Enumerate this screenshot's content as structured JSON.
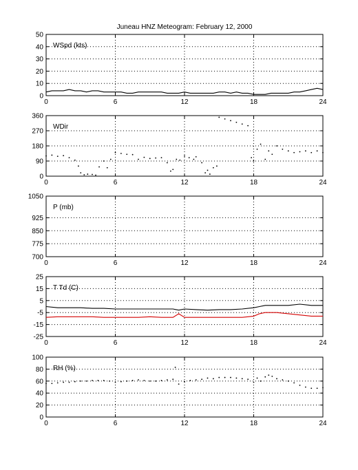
{
  "title": "Juneau HNZ Meteogram:  February 12, 2000",
  "chart_data": [
    {
      "type": "line",
      "label": "WSpd (kts)",
      "ylim": [
        0,
        50
      ],
      "yticks": [
        0,
        10,
        20,
        30,
        40,
        50
      ],
      "xlim": [
        0,
        24
      ],
      "xticks": [
        0,
        6,
        12,
        18,
        24
      ],
      "grid": true,
      "series": [
        {
          "color": "#000000",
          "x": [
            0,
            0.5,
            1,
            1.5,
            2,
            2.5,
            3,
            3.5,
            4,
            4.5,
            5,
            5.5,
            6,
            6.5,
            7,
            7.5,
            8,
            8.5,
            9,
            9.5,
            10,
            10.5,
            11,
            11.5,
            12,
            12.5,
            13,
            13.5,
            14,
            14.5,
            15,
            15.5,
            16,
            16.5,
            17,
            17.5,
            18,
            18.5,
            19,
            19.5,
            20,
            20.5,
            21,
            21.5,
            22,
            22.5,
            23,
            23.5,
            24
          ],
          "y": [
            3,
            4,
            4,
            4,
            5,
            4,
            4,
            3,
            4,
            4,
            3,
            3,
            3,
            3,
            2,
            2,
            3,
            3,
            3,
            3,
            3,
            2,
            2,
            2,
            3,
            2,
            2,
            2,
            2,
            2,
            3,
            3,
            2,
            3,
            2,
            2,
            1,
            1,
            1,
            2,
            2,
            2,
            2,
            3,
            3,
            4,
            5,
            6,
            5
          ]
        }
      ]
    },
    {
      "type": "scatter",
      "label": "WDir",
      "ylim": [
        0,
        360
      ],
      "yticks": [
        0,
        90,
        180,
        270,
        360
      ],
      "xlim": [
        0,
        24
      ],
      "xticks": [
        0,
        6,
        12,
        18,
        24
      ],
      "grid": true,
      "series": [
        {
          "color": "#000000",
          "x": [
            0,
            0.5,
            1,
            1.5,
            2,
            2.5,
            2.8,
            3,
            3.3,
            3.6,
            4,
            4.3,
            4.6,
            5,
            5.3,
            5.6,
            6,
            6.5,
            7,
            7.5,
            8,
            8.5,
            9,
            9.5,
            10,
            10.5,
            10.8,
            11,
            11.3,
            11.6,
            12,
            12.4,
            12.8,
            13,
            13.5,
            13.8,
            14,
            14.2,
            14.5,
            14.8,
            15,
            15.5,
            16,
            16.5,
            17,
            17.5,
            17.8,
            18,
            18.3,
            18.6,
            19,
            19.3,
            19.6,
            20,
            20.5,
            21,
            21.5,
            22,
            22.5,
            23,
            23.5,
            24
          ],
          "y": [
            120,
            125,
            118,
            122,
            110,
            95,
            60,
            20,
            8,
            12,
            10,
            6,
            55,
            90,
            50,
            100,
            140,
            135,
            130,
            128,
            100,
            112,
            105,
            108,
            110,
            80,
            30,
            40,
            100,
            95,
            120,
            110,
            100,
            115,
            80,
            20,
            35,
            12,
            50,
            60,
            350,
            340,
            330,
            320,
            310,
            300,
            110,
            90,
            160,
            190,
            100,
            150,
            130,
            180,
            160,
            150,
            140,
            145,
            150,
            140,
            150,
            140
          ]
        }
      ]
    },
    {
      "type": "line",
      "label": "P (mb)",
      "ylim": [
        700,
        1050
      ],
      "yticks": [
        700,
        775,
        850,
        925,
        1050
      ],
      "xlim": [
        0,
        24
      ],
      "xticks": [
        0,
        6,
        12,
        18,
        24
      ],
      "grid": true,
      "series": []
    },
    {
      "type": "line",
      "label": "T Td (C)",
      "ylim": [
        -25,
        25
      ],
      "yticks": [
        -25,
        -15,
        -5,
        5,
        15,
        25
      ],
      "xlim": [
        0,
        24
      ],
      "xticks": [
        0,
        6,
        12,
        18,
        24
      ],
      "grid": true,
      "series": [
        {
          "color": "#000000",
          "x": [
            0,
            1,
            2,
            3,
            4,
            5,
            6,
            7,
            8,
            9,
            10,
            11,
            11.5,
            12,
            13,
            14,
            15,
            16,
            17,
            18,
            18.5,
            19,
            20,
            21,
            22,
            23,
            24
          ],
          "y": [
            0,
            -1,
            -1,
            -1,
            -1.5,
            -1.5,
            -2,
            -2,
            -2,
            -2,
            -2,
            -2,
            -3,
            -2,
            -2.5,
            -3,
            -2.5,
            -2.5,
            -2,
            -1,
            0,
            1,
            1,
            1,
            2,
            1,
            1
          ]
        },
        {
          "color": "#d40000",
          "x": [
            0,
            1,
            2,
            3,
            4,
            5,
            6,
            7,
            8,
            9,
            10,
            11,
            11.5,
            12,
            13,
            14,
            15,
            16,
            17,
            18,
            18.5,
            19,
            20,
            21,
            22,
            23,
            24
          ],
          "y": [
            -9,
            -8.5,
            -8.5,
            -8.5,
            -8.5,
            -9,
            -9,
            -9,
            -9,
            -8.5,
            -9,
            -9,
            -6,
            -9,
            -9,
            -9,
            -9,
            -9,
            -9,
            -8,
            -6,
            -5,
            -5,
            -6,
            -7,
            -8,
            -8
          ]
        }
      ]
    },
    {
      "type": "scatter",
      "label": "RH (%)",
      "ylim": [
        0,
        100
      ],
      "yticks": [
        0,
        20,
        40,
        60,
        80,
        100
      ],
      "xlim": [
        0,
        24
      ],
      "xticks": [
        0,
        6,
        12,
        18,
        24
      ],
      "grid": true,
      "series": [
        {
          "color": "#000000",
          "x": [
            0,
            0.5,
            1,
            1.5,
            2,
            2.5,
            3,
            3.5,
            4,
            4.5,
            5,
            5.5,
            6,
            6.5,
            7,
            7.5,
            8,
            8.5,
            9,
            9.5,
            10,
            10.5,
            11,
            11.2,
            11.5,
            12,
            12.5,
            13,
            13.5,
            14,
            14.5,
            15,
            15.5,
            16,
            16.5,
            17,
            17.5,
            18,
            18.3,
            18.6,
            19,
            19.3,
            19.6,
            20,
            20.5,
            21,
            21.5,
            22,
            22.5,
            23,
            23.5,
            24
          ],
          "y": [
            56,
            56,
            57,
            58,
            58,
            59,
            60,
            60,
            61,
            61,
            61,
            60,
            58,
            59,
            60,
            61,
            62,
            61,
            60,
            60,
            61,
            62,
            63,
            83,
            55,
            59,
            61,
            62,
            63,
            65,
            64,
            66,
            66,
            66,
            65,
            64,
            63,
            58,
            65,
            60,
            67,
            70,
            68,
            64,
            62,
            60,
            57,
            53,
            50,
            48,
            48,
            49
          ]
        }
      ]
    }
  ]
}
